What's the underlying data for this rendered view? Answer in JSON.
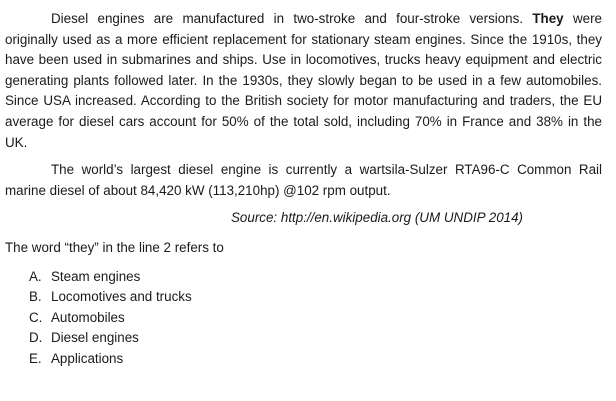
{
  "passage": {
    "p1_before": "Diesel engines are manufactured in two-stroke and four-stroke versions. ",
    "p1_bold": "They",
    "p1_after": " were originally used as a more efficient replacement for stationary steam engines. Since the 1910s, they have been used in submarines and ships. Use in locomotives, trucks heavy equipment and electric generating plants followed later. In the 1930s, they slowly began to be used in a few automobiles. Since USA increased. According to the British society for motor manufacturing and traders, the EU average for diesel cars account for 50% of the total sold, including 70% in France and 38% in the UK.",
    "p2": "The world’s largest diesel engine is currently a wartsila-Sulzer RTA96-C Common Rail marine diesel of about 84,420 kW (113,210hp) @102 rpm output.",
    "source": "Source: http://en.wikipedia.org (UM UNDIP 2014)"
  },
  "question": {
    "text": "The word “they” in the line 2 refers to",
    "options": [
      {
        "letter": "A.",
        "text": "Steam engines"
      },
      {
        "letter": "B.",
        "text": "Locomotives and trucks"
      },
      {
        "letter": "C.",
        "text": "Automobiles"
      },
      {
        "letter": "D.",
        "text": "Diesel engines"
      },
      {
        "letter": "E.",
        "text": "Applications"
      }
    ]
  }
}
